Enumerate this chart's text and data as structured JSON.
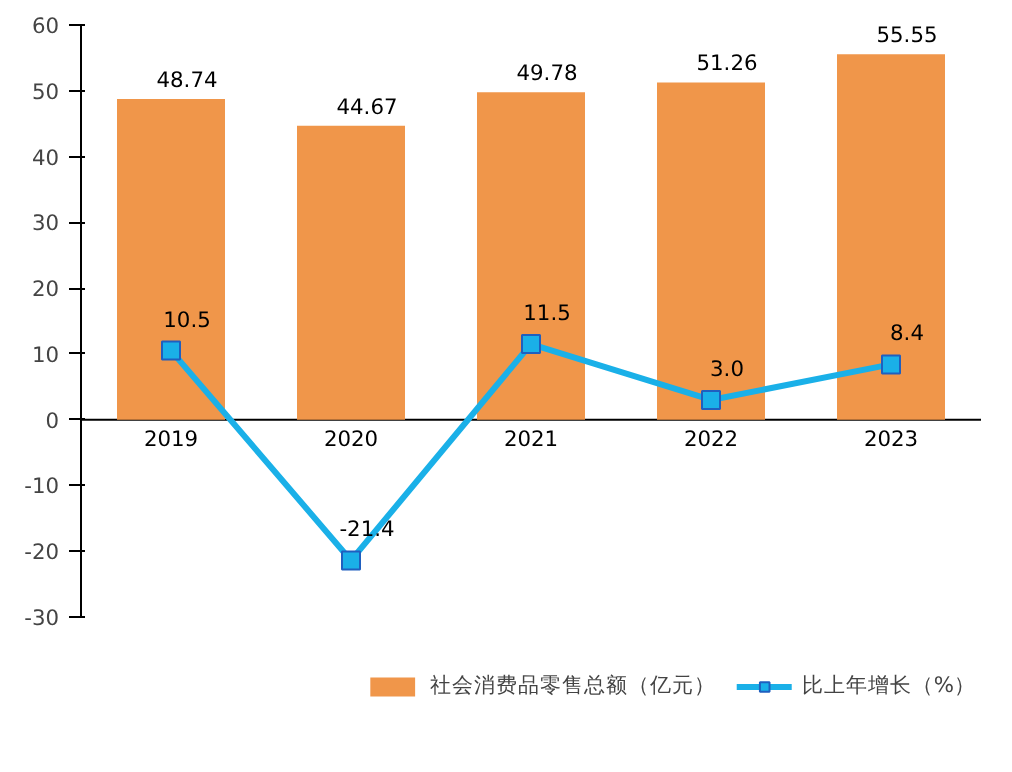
{
  "chart_data": {
    "type": "bar",
    "categories": [
      "2019",
      "2020",
      "2021",
      "2022",
      "2023"
    ],
    "series": [
      {
        "name": "社会消费品零售总额（亿元）",
        "color": "#f0964a",
        "values": [
          48.74,
          44.67,
          49.78,
          51.26,
          55.55
        ],
        "value_labels": [
          "48.74",
          "44.67",
          "49.78",
          "51.26",
          "55.55"
        ]
      },
      {
        "name": "比上年增长（%）",
        "type": "line",
        "color": "#1ab0e8",
        "values": [
          10.5,
          -21.4,
          11.5,
          3.0,
          8.4
        ],
        "value_labels": [
          "10.5",
          "-21.4",
          "11.5",
          "3.0",
          "8.4"
        ],
        "marker": "square"
      }
    ],
    "ylim": [
      -30,
      60
    ],
    "yticks": [
      -30,
      -20,
      -10,
      0,
      10,
      20,
      30,
      40,
      50,
      60
    ],
    "legend": "bottom"
  }
}
